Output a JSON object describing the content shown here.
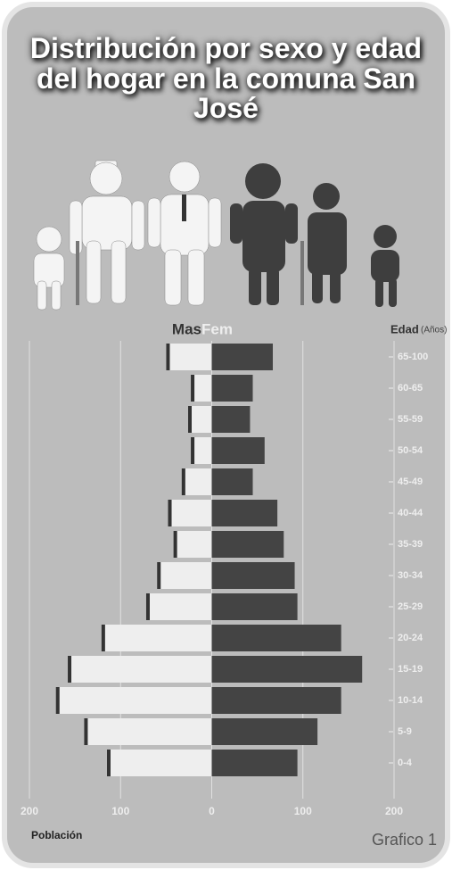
{
  "chart_data": {
    "type": "pyramid",
    "title": "Distribución por sexo y edad del hogar en la comuna San José",
    "categories": [
      "65-100",
      "60-65",
      "55-59",
      "50-54",
      "45-49",
      "40-44",
      "35-39",
      "30-34",
      "25-29",
      "20-24",
      "15-19",
      "10-14",
      "5-9",
      "0-4"
    ],
    "series": [
      {
        "name": "Mas",
        "color": "#eeeeee",
        "values": [
          46,
          19,
          22,
          19,
          29,
          44,
          38,
          56,
          68,
          117,
          154,
          167,
          136,
          111
        ]
      },
      {
        "name": "Fem",
        "color": "#444444",
        "values": [
          67,
          45,
          42,
          58,
          45,
          72,
          79,
          91,
          94,
          142,
          165,
          142,
          116,
          94
        ]
      }
    ],
    "xlim": [
      -200,
      200
    ],
    "xticks": [
      {
        "value": -200,
        "label": "200"
      },
      {
        "value": -100,
        "label": "100"
      },
      0,
      100,
      200
    ],
    "x_label": "Población",
    "y_label": "Edad",
    "y_unit": "(Años)",
    "caption": "Grafico 1",
    "grid": true
  }
}
